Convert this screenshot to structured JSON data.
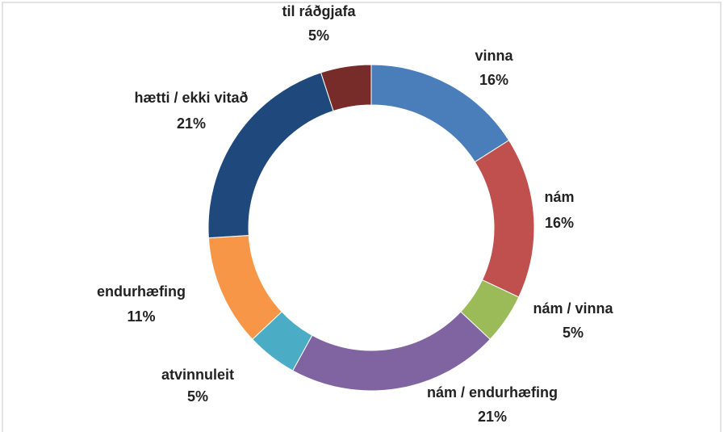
{
  "chart_data": {
    "type": "donut",
    "categories": [
      "vinna",
      "nám",
      "nám / vinna",
      "nám / endurhæfing",
      "atvinnuleit",
      "endurhæfing",
      "hætti / ekki vitað",
      "til ráðgjafa"
    ],
    "values": [
      16,
      16,
      5,
      21,
      5,
      11,
      21,
      5
    ],
    "value_labels": [
      "16%",
      "16%",
      "5%",
      "21%",
      "5%",
      "11%",
      "21%",
      "5%"
    ],
    "colors": [
      "#4a7ebb",
      "#c0504d",
      "#9bbb59",
      "#8064a2",
      "#4bacc6",
      "#f79646",
      "#1f497d",
      "#772c2a"
    ]
  }
}
